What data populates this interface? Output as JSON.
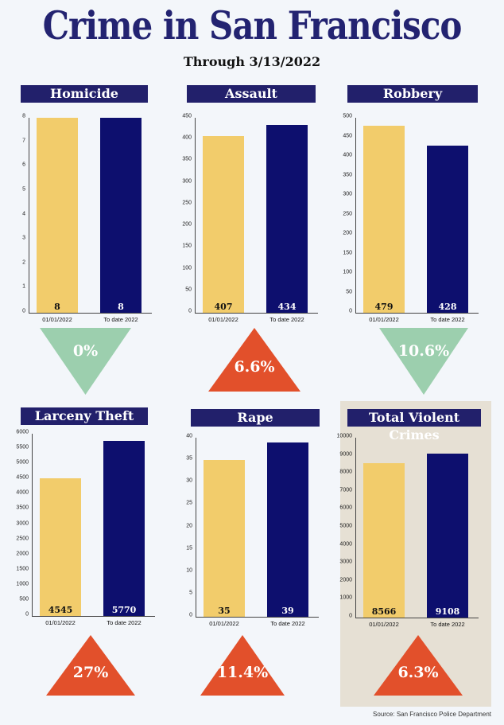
{
  "title": "Crime in San Francisco",
  "subtitle": "Through 3/13/2022",
  "source": "Source: San Francisco Police Department",
  "colors": {
    "bar_2021": "#f2cc6b",
    "bar_2022": "#0d0f6e",
    "down": "#9ccfae",
    "up": "#e2502b",
    "header": "#22206b"
  },
  "chart_data": [
    {
      "type": "bar",
      "title": "Homicide",
      "categories": [
        "01/01/2022",
        "To date 2022"
      ],
      "values": [
        8,
        8
      ],
      "value_labels": [
        "8",
        "8"
      ],
      "yticks": [
        0,
        1,
        2,
        3,
        4,
        5,
        6,
        7,
        8
      ],
      "ylim": [
        0,
        8
      ],
      "change": "0%",
      "direction": "down"
    },
    {
      "type": "bar",
      "title": "Assault",
      "categories": [
        "01/01/2022",
        "To date 2022"
      ],
      "values": [
        407,
        434
      ],
      "value_labels": [
        "407",
        "434"
      ],
      "yticks": [
        0,
        50,
        100,
        150,
        200,
        250,
        300,
        350,
        400,
        450
      ],
      "ylim": [
        0,
        450
      ],
      "change": "6.6%",
      "direction": "up"
    },
    {
      "type": "bar",
      "title": "Robbery",
      "categories": [
        "01/01/2022",
        "To date 2022"
      ],
      "values": [
        479,
        428
      ],
      "value_labels": [
        "479",
        "428"
      ],
      "yticks": [
        0,
        50,
        100,
        150,
        200,
        250,
        300,
        350,
        400,
        450,
        500
      ],
      "ylim": [
        0,
        500
      ],
      "change": "10.6%",
      "direction": "down"
    },
    {
      "type": "bar",
      "title": "Larceny Theft",
      "categories": [
        "01/01/2022",
        "To date 2022"
      ],
      "values": [
        4545,
        5770
      ],
      "value_labels": [
        "4545",
        "5770"
      ],
      "yticks": [
        0,
        500,
        1000,
        1500,
        2000,
        2500,
        3000,
        3500,
        4000,
        4500,
        5000,
        5500,
        6000
      ],
      "ylim": [
        0,
        6000
      ],
      "change": "27%",
      "direction": "up"
    },
    {
      "type": "bar",
      "title": "Rape",
      "categories": [
        "01/01/2022",
        "To date 2022"
      ],
      "values": [
        35,
        39
      ],
      "value_labels": [
        "35",
        "39"
      ],
      "yticks": [
        0,
        5,
        10,
        15,
        20,
        25,
        30,
        35,
        40
      ],
      "ylim": [
        0,
        40
      ],
      "change": "11.4%",
      "direction": "up"
    },
    {
      "type": "bar",
      "title": "Total Violent Crimes",
      "categories": [
        "01/01/2022",
        "To date 2022"
      ],
      "values": [
        8566,
        9108
      ],
      "value_labels": [
        "8566",
        "9108"
      ],
      "yticks": [
        0,
        1000,
        2000,
        3000,
        4000,
        5000,
        6000,
        7000,
        8000,
        9000,
        10000
      ],
      "ylim": [
        0,
        10000
      ],
      "change": "6.3%",
      "direction": "up",
      "highlighted": true
    }
  ]
}
